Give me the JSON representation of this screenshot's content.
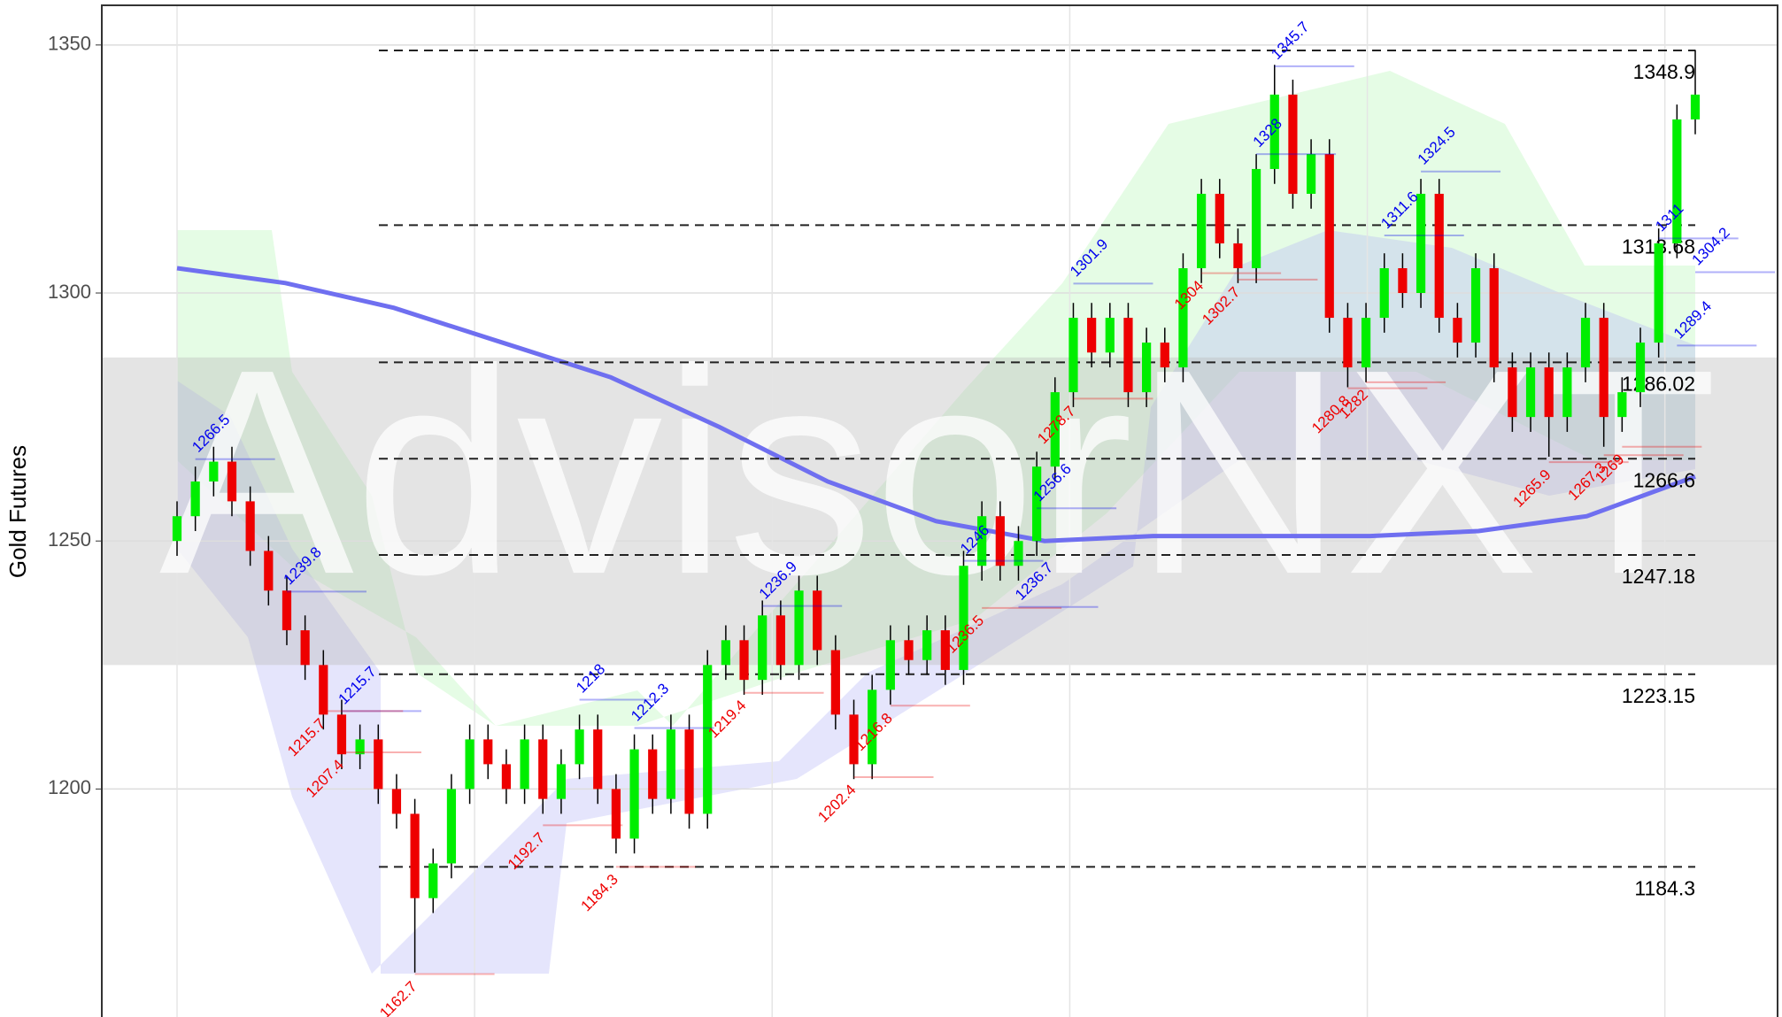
{
  "chart_data": {
    "type": "candlestick",
    "ylabel": "Gold Futures",
    "watermark": "AdvisorNXT",
    "ylim": [
      1153.5,
      1358
    ],
    "yticks": [
      1200,
      1250,
      1300,
      1350
    ],
    "grid": true,
    "up_color": "#00ee00",
    "down_color": "#ee0000",
    "band": [
      1225,
      1287
    ],
    "series": [
      {
        "open": [
          1250,
          1255,
          1262,
          1266,
          1258,
          1248,
          1240,
          1232,
          1225,
          1215,
          1207,
          1210,
          1200,
          1195,
          1178,
          1185,
          1200,
          1210,
          1205,
          1200,
          1210,
          1198,
          1205,
          1212,
          1200,
          1190,
          1208,
          1198,
          1212,
          1195,
          1225,
          1230,
          1222,
          1235,
          1225,
          1240,
          1228,
          1215,
          1205,
          1220,
          1230,
          1226,
          1232,
          1224,
          1245,
          1255,
          1245,
          1250,
          1265,
          1280,
          1295,
          1288,
          1295,
          1280,
          1290,
          1285,
          1305,
          1320,
          1310,
          1305,
          1325,
          1340,
          1320,
          1328,
          1295,
          1285,
          1295,
          1305,
          1300,
          1320,
          1295,
          1290,
          1305,
          1285,
          1275,
          1285,
          1275,
          1285,
          1295,
          1275,
          1280,
          1290,
          1310,
          1335
        ],
        "high": [
          1258,
          1265,
          1269,
          1269,
          1261,
          1251,
          1243,
          1235,
          1228,
          1218,
          1213,
          1213,
          1203,
          1198,
          1188,
          1203,
          1213,
          1213,
          1208,
          1213,
          1213,
          1208,
          1215,
          1215,
          1203,
          1211,
          1211,
          1215,
          1215,
          1228,
          1233,
          1233,
          1238,
          1238,
          1243,
          1243,
          1231,
          1218,
          1223,
          1233,
          1233,
          1235,
          1235,
          1248,
          1258,
          1258,
          1253,
          1268,
          1283,
          1298,
          1298,
          1298,
          1298,
          1293,
          1293,
          1308,
          1323,
          1323,
          1313,
          1328,
          1346,
          1343,
          1331,
          1331,
          1298,
          1298,
          1308,
          1308,
          1323,
          1323,
          1298,
          1308,
          1308,
          1288,
          1288,
          1288,
          1288,
          1298,
          1298,
          1283,
          1293,
          1313,
          1338,
          1349
        ],
        "low": [
          1247,
          1252,
          1259,
          1255,
          1245,
          1237,
          1229,
          1222,
          1212,
          1204,
          1204,
          1197,
          1192,
          1163,
          1175,
          1182,
          1197,
          1202,
          1197,
          1197,
          1195,
          1195,
          1202,
          1197,
          1187,
          1187,
          1195,
          1195,
          1192,
          1192,
          1222,
          1219,
          1219,
          1222,
          1222,
          1225,
          1212,
          1202,
          1202,
          1217,
          1223,
          1223,
          1221,
          1221,
          1242,
          1242,
          1242,
          1247,
          1262,
          1277,
          1285,
          1285,
          1277,
          1277,
          1282,
          1282,
          1302,
          1307,
          1302,
          1302,
          1322,
          1317,
          1317,
          1292,
          1281,
          1282,
          1292,
          1297,
          1297,
          1292,
          1287,
          1287,
          1282,
          1272,
          1272,
          1267,
          1272,
          1282,
          1269,
          1272,
          1277,
          1287,
          1307,
          1332
        ],
        "close": [
          1255,
          1262,
          1266,
          1258,
          1248,
          1240,
          1232,
          1225,
          1215,
          1207,
          1210,
          1200,
          1195,
          1178,
          1185,
          1200,
          1210,
          1205,
          1200,
          1210,
          1198,
          1205,
          1212,
          1200,
          1190,
          1208,
          1198,
          1212,
          1195,
          1225,
          1230,
          1222,
          1235,
          1225,
          1240,
          1228,
          1215,
          1205,
          1220,
          1230,
          1226,
          1232,
          1224,
          1245,
          1255,
          1245,
          1250,
          1265,
          1280,
          1295,
          1288,
          1295,
          1280,
          1290,
          1285,
          1305,
          1320,
          1310,
          1305,
          1325,
          1340,
          1320,
          1328,
          1295,
          1285,
          1295,
          1305,
          1300,
          1320,
          1295,
          1290,
          1305,
          1285,
          1275,
          1285,
          1275,
          1285,
          1295,
          1275,
          1280,
          1290,
          1310,
          1335,
          1340
        ]
      }
    ],
    "moving_average": {
      "color": "#6f6ff0",
      "values": [
        1305,
        1302,
        1297,
        1290,
        1283,
        1273,
        1262,
        1254,
        1250,
        1251,
        1251,
        1251,
        1252,
        1255,
        1263
      ]
    },
    "levels": [
      1348.9,
      1313.68,
      1286.02,
      1266.6,
      1247.18,
      1223.15,
      1184.3
    ],
    "high_labels": {
      "color": "#0000ee",
      "values": [
        1266.5,
        1239.8,
        1215.7,
        1218,
        1212.3,
        1236.9,
        1246,
        1236.7,
        1256.6,
        1301.9,
        1328,
        1345.7,
        1311.6,
        1324.5,
        1311,
        1289.4,
        1304.2
      ]
    },
    "low_labels": {
      "color": "#ee0000",
      "values": [
        1215.7,
        1207.4,
        1162.7,
        1192.7,
        1184.3,
        1219.4,
        1202.4,
        1216.8,
        1236.5,
        1278.7,
        1304,
        1302.7,
        1280.8,
        1282,
        1265.9,
        1267.3,
        1269
      ]
    }
  }
}
